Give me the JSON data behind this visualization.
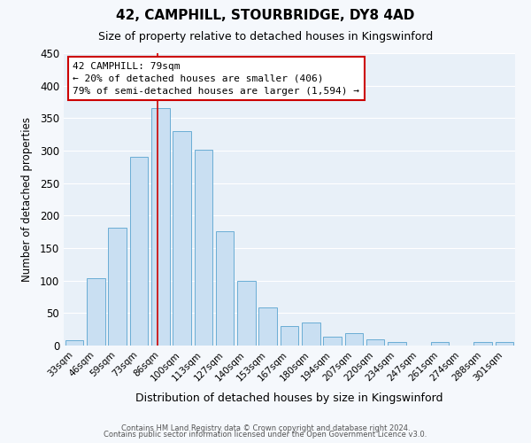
{
  "title": "42, CAMPHILL, STOURBRIDGE, DY8 4AD",
  "subtitle": "Size of property relative to detached houses in Kingswinford",
  "xlabel": "Distribution of detached houses by size in Kingswinford",
  "ylabel": "Number of detached properties",
  "bar_color": "#c9dff2",
  "bar_edge_color": "#6aadd5",
  "background_color": "#e8f0f8",
  "fig_background_color": "#f5f8fc",
  "grid_color": "#ffffff",
  "categories": [
    "33sqm",
    "46sqm",
    "59sqm",
    "73sqm",
    "86sqm",
    "100sqm",
    "113sqm",
    "127sqm",
    "140sqm",
    "153sqm",
    "167sqm",
    "180sqm",
    "194sqm",
    "207sqm",
    "220sqm",
    "234sqm",
    "247sqm",
    "261sqm",
    "274sqm",
    "288sqm",
    "301sqm"
  ],
  "values": [
    8,
    103,
    181,
    290,
    365,
    330,
    301,
    176,
    100,
    58,
    30,
    35,
    13,
    19,
    10,
    5,
    0,
    5,
    0,
    5,
    5
  ],
  "red_line_x": 3.85,
  "annotation_text_line1": "42 CAMPHILL: 79sqm",
  "annotation_text_line2": "← 20% of detached houses are smaller (406)",
  "annotation_text_line3": "79% of semi-detached houses are larger (1,594) →",
  "annotation_box_color": "#ffffff",
  "annotation_box_edge": "#cc0000",
  "ylim": [
    0,
    450
  ],
  "yticks": [
    0,
    50,
    100,
    150,
    200,
    250,
    300,
    350,
    400,
    450
  ],
  "footer_line1": "Contains HM Land Registry data © Crown copyright and database right 2024.",
  "footer_line2": "Contains public sector information licensed under the Open Government Licence v3.0."
}
